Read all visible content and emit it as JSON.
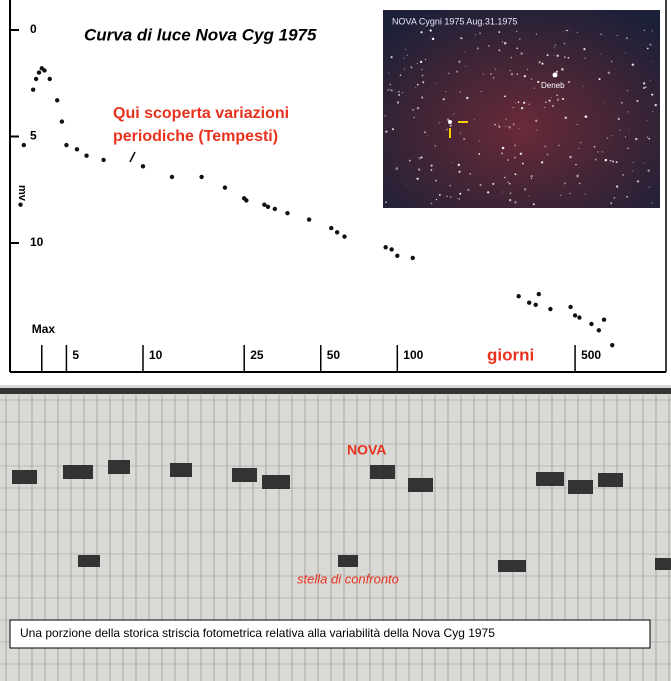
{
  "chart_data": {
    "type": "scatter",
    "title": "Curva di luce Nova Cyg 1975",
    "ylabel": "mv",
    "xlabel": "giorni",
    "annotation": [
      "Qui scoperta variazioni",
      "periodiche (Tempesti)"
    ],
    "xscale": "log",
    "yinverted": true,
    "color": "#111111",
    "xlim": [
      3,
      900
    ],
    "ylim": [
      -1.2,
      16
    ],
    "xticks": [
      {
        "value": 4,
        "label": "Max"
      },
      5,
      10,
      25,
      50,
      100,
      500
    ],
    "yticks": [
      0,
      5,
      10
    ],
    "x": [
      3.3,
      3.4,
      3.7,
      3.8,
      3.9,
      4.0,
      4.1,
      4.3,
      4.6,
      4.8,
      5,
      5.5,
      6,
      7,
      10,
      13,
      17,
      21,
      25,
      25.5,
      30,
      31,
      33,
      37,
      45,
      55,
      58,
      62,
      90,
      95,
      100,
      115,
      300,
      330,
      350,
      360,
      400,
      480,
      500,
      520,
      580,
      620,
      650,
      700
    ],
    "values": [
      8.2,
      5.4,
      2.8,
      2.3,
      2.0,
      1.8,
      1.9,
      2.3,
      3.3,
      4.3,
      5.4,
      5.6,
      5.9,
      6.1,
      6.4,
      6.9,
      6.9,
      7.4,
      7.9,
      8.0,
      8.2,
      8.3,
      8.4,
      8.6,
      8.9,
      9.3,
      9.5,
      9.7,
      10.2,
      10.3,
      10.6,
      10.7,
      12.5,
      12.8,
      12.9,
      12.4,
      13.1,
      13.0,
      13.4,
      13.5,
      13.8,
      14.1,
      13.6,
      14.8
    ]
  },
  "photo": {
    "caption": "NOVA Cygni 1975  Aug.31.1975",
    "star": "Deneb"
  },
  "strip": {
    "nova_label": "NOVA",
    "comparison_label": "stella di confronto",
    "caption": "Una porzione della storica striscia fotometrica relativa alla variabilità della Nova Cyg 1975"
  }
}
